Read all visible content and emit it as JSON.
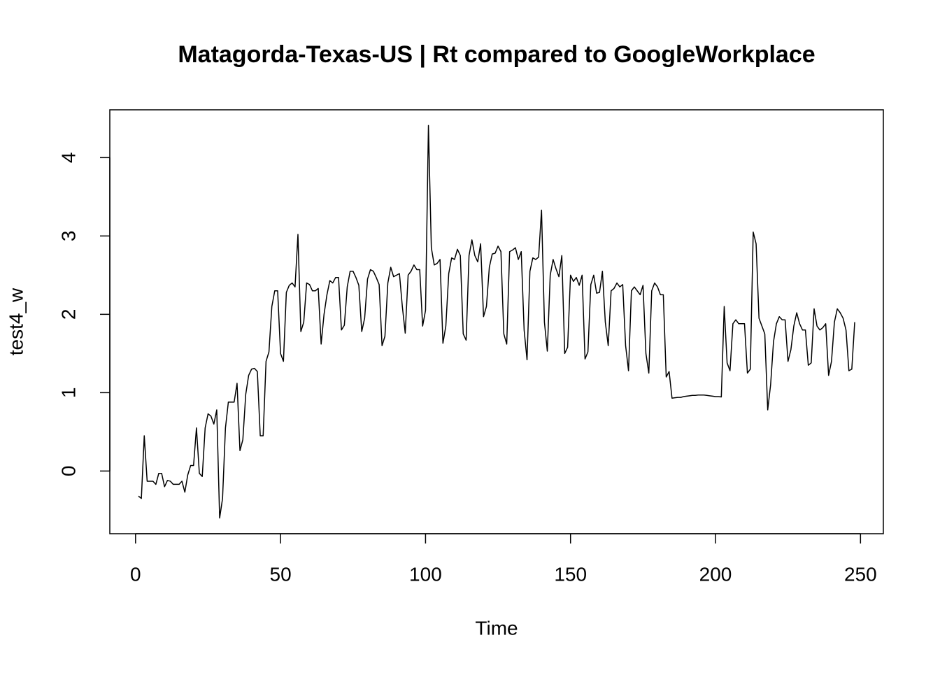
{
  "chart_data": {
    "type": "line",
    "title": "Matagorda-Texas-US | Rt compared to GoogleWorkplace",
    "xlabel": "Time",
    "ylabel": "test4_w",
    "xlim": [
      -8.88,
      257.88
    ],
    "ylim": [
      -0.8,
      4.61
    ],
    "xticks": [
      0,
      50,
      100,
      150,
      200,
      250
    ],
    "yticks": [
      0,
      1,
      2,
      3,
      4
    ],
    "color": "#000000",
    "x": [
      1,
      2,
      3,
      4,
      5,
      6,
      7,
      8,
      9,
      10,
      11,
      12,
      13,
      14,
      15,
      16,
      17,
      18,
      19,
      20,
      21,
      22,
      23,
      24,
      25,
      26,
      27,
      28,
      29,
      30,
      31,
      32,
      33,
      34,
      35,
      36,
      37,
      38,
      39,
      40,
      41,
      42,
      43,
      44,
      45,
      46,
      47,
      48,
      49,
      50,
      51,
      52,
      53,
      54,
      55,
      56,
      57,
      58,
      59,
      60,
      61,
      62,
      63,
      64,
      65,
      66,
      67,
      68,
      69,
      70,
      71,
      72,
      73,
      74,
      75,
      76,
      77,
      78,
      79,
      80,
      81,
      82,
      83,
      84,
      85,
      86,
      87,
      88,
      89,
      90,
      91,
      92,
      93,
      94,
      95,
      96,
      97,
      98,
      99,
      100,
      101,
      102,
      103,
      104,
      105,
      106,
      107,
      108,
      109,
      110,
      111,
      112,
      113,
      114,
      115,
      116,
      117,
      118,
      119,
      120,
      121,
      122,
      123,
      124,
      125,
      126,
      127,
      128,
      129,
      130,
      131,
      132,
      133,
      134,
      135,
      136,
      137,
      138,
      139,
      140,
      141,
      142,
      143,
      144,
      145,
      146,
      147,
      148,
      149,
      150,
      151,
      152,
      153,
      154,
      155,
      156,
      157,
      158,
      159,
      160,
      161,
      162,
      163,
      164,
      165,
      166,
      167,
      168,
      169,
      170,
      171,
      172,
      173,
      174,
      175,
      176,
      177,
      178,
      179,
      180,
      181,
      182,
      183,
      184,
      185,
      186,
      187,
      188,
      189,
      190,
      191,
      192,
      193,
      194,
      195,
      196,
      197,
      198,
      199,
      200,
      201,
      202,
      203,
      204,
      205,
      206,
      207,
      208,
      209,
      210,
      211,
      212,
      213,
      214,
      215,
      216,
      217,
      218,
      219,
      220,
      221,
      222,
      223,
      224,
      225,
      226,
      227,
      228,
      229,
      230,
      231,
      232,
      233,
      234,
      235,
      236,
      237,
      238,
      239,
      240,
      241,
      242,
      243,
      244,
      245,
      246,
      247,
      248
    ],
    "values": [
      -0.32,
      -0.35,
      0.45,
      -0.13,
      -0.13,
      -0.13,
      -0.17,
      -0.03,
      -0.03,
      -0.2,
      -0.12,
      -0.13,
      -0.17,
      -0.17,
      -0.17,
      -0.13,
      -0.27,
      -0.05,
      0.07,
      0.07,
      0.55,
      -0.03,
      -0.07,
      0.55,
      0.73,
      0.7,
      0.6,
      0.78,
      -0.6,
      -0.35,
      0.55,
      0.88,
      0.88,
      0.88,
      1.12,
      0.26,
      0.4,
      0.98,
      1.22,
      1.3,
      1.31,
      1.27,
      0.45,
      0.45,
      1.4,
      1.52,
      2.1,
      2.3,
      2.3,
      1.5,
      1.4,
      2.28,
      2.37,
      2.4,
      2.35,
      3.02,
      1.78,
      1.9,
      2.4,
      2.38,
      2.3,
      2.3,
      2.33,
      1.62,
      2.0,
      2.25,
      2.43,
      2.4,
      2.47,
      2.47,
      1.8,
      1.86,
      2.35,
      2.55,
      2.55,
      2.47,
      2.37,
      1.78,
      1.95,
      2.45,
      2.57,
      2.55,
      2.47,
      2.38,
      1.6,
      1.72,
      2.4,
      2.6,
      2.48,
      2.5,
      2.52,
      2.1,
      1.76,
      2.5,
      2.55,
      2.63,
      2.57,
      2.57,
      1.85,
      2.05,
      4.41,
      2.85,
      2.63,
      2.65,
      2.7,
      1.63,
      1.85,
      2.52,
      2.72,
      2.7,
      2.83,
      2.75,
      1.75,
      1.67,
      2.75,
      2.95,
      2.75,
      2.67,
      2.9,
      1.97,
      2.1,
      2.6,
      2.77,
      2.78,
      2.87,
      2.8,
      1.75,
      1.62,
      2.8,
      2.82,
      2.85,
      2.7,
      2.8,
      1.8,
      1.42,
      2.55,
      2.72,
      2.7,
      2.73,
      3.33,
      1.9,
      1.53,
      2.5,
      2.7,
      2.58,
      2.48,
      2.75,
      1.5,
      1.58,
      2.5,
      2.42,
      2.47,
      2.37,
      2.5,
      1.43,
      1.52,
      2.38,
      2.5,
      2.27,
      2.28,
      2.55,
      1.9,
      1.6,
      2.3,
      2.33,
      2.4,
      2.35,
      2.38,
      1.6,
      1.28,
      2.3,
      2.35,
      2.3,
      2.25,
      2.37,
      1.5,
      1.25,
      2.3,
      2.4,
      2.35,
      2.25,
      2.25,
      1.2,
      1.27,
      0.93,
      0.935,
      0.94,
      0.94,
      0.95,
      0.955,
      0.96,
      0.965,
      0.965,
      0.97,
      0.97,
      0.97,
      0.965,
      0.96,
      0.955,
      0.95,
      0.95,
      0.945,
      2.1,
      1.38,
      1.28,
      1.88,
      1.93,
      1.88,
      1.88,
      1.88,
      1.25,
      1.3,
      3.05,
      2.9,
      1.95,
      1.85,
      1.75,
      0.78,
      1.1,
      1.65,
      1.88,
      1.97,
      1.93,
      1.93,
      1.4,
      1.55,
      1.85,
      2.02,
      1.88,
      1.8,
      1.8,
      1.35,
      1.38,
      2.07,
      1.85,
      1.8,
      1.83,
      1.88,
      1.22,
      1.4,
      1.9,
      2.07,
      2.02,
      1.95,
      1.8,
      1.28,
      1.3,
      1.9
    ]
  }
}
